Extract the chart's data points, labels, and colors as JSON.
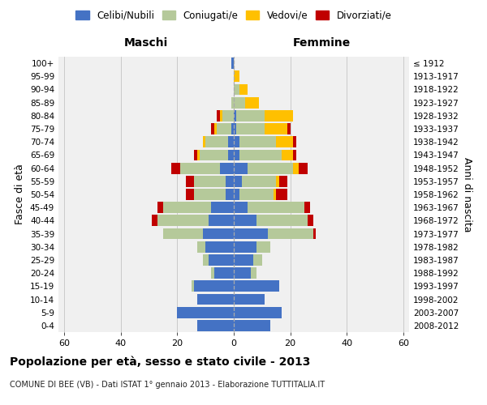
{
  "age_groups": [
    "0-4",
    "5-9",
    "10-14",
    "15-19",
    "20-24",
    "25-29",
    "30-34",
    "35-39",
    "40-44",
    "45-49",
    "50-54",
    "55-59",
    "60-64",
    "65-69",
    "70-74",
    "75-79",
    "80-84",
    "85-89",
    "90-94",
    "95-99",
    "100+"
  ],
  "birth_years": [
    "2008-2012",
    "2003-2007",
    "1998-2002",
    "1993-1997",
    "1988-1992",
    "1983-1987",
    "1978-1982",
    "1973-1977",
    "1968-1972",
    "1963-1967",
    "1958-1962",
    "1953-1957",
    "1948-1952",
    "1943-1947",
    "1938-1942",
    "1933-1937",
    "1928-1932",
    "1923-1927",
    "1918-1922",
    "1913-1917",
    "≤ 1912"
  ],
  "colors": {
    "celibi": "#4472c4",
    "coniugati": "#b5c99a",
    "vedovi": "#ffc000",
    "divorziati": "#c00000",
    "background": "#f0f0f0",
    "grid": "#cccccc",
    "dashed": "#aaaaaa"
  },
  "maschi": {
    "celibi": [
      13,
      20,
      13,
      14,
      7,
      9,
      10,
      11,
      9,
      8,
      3,
      3,
      5,
      2,
      2,
      1,
      0,
      0,
      0,
      0,
      1
    ],
    "coniugati": [
      0,
      0,
      0,
      1,
      1,
      2,
      3,
      14,
      18,
      17,
      11,
      11,
      14,
      10,
      8,
      5,
      4,
      1,
      0,
      0,
      0
    ],
    "vedovi": [
      0,
      0,
      0,
      0,
      0,
      0,
      0,
      0,
      0,
      0,
      0,
      0,
      0,
      1,
      1,
      1,
      1,
      0,
      0,
      0,
      0
    ],
    "divorziati": [
      0,
      0,
      0,
      0,
      0,
      0,
      0,
      0,
      2,
      2,
      3,
      3,
      3,
      1,
      0,
      1,
      1,
      0,
      0,
      0,
      0
    ]
  },
  "femmine": {
    "celibi": [
      13,
      17,
      11,
      16,
      6,
      7,
      8,
      12,
      8,
      5,
      2,
      3,
      5,
      2,
      2,
      1,
      1,
      0,
      0,
      0,
      0
    ],
    "coniugati": [
      0,
      0,
      0,
      0,
      2,
      3,
      5,
      16,
      18,
      20,
      12,
      12,
      16,
      15,
      13,
      10,
      10,
      4,
      2,
      0,
      0
    ],
    "vedovi": [
      0,
      0,
      0,
      0,
      0,
      0,
      0,
      0,
      0,
      0,
      1,
      1,
      2,
      4,
      6,
      8,
      10,
      5,
      3,
      2,
      0
    ],
    "divorziati": [
      0,
      0,
      0,
      0,
      0,
      0,
      0,
      1,
      2,
      2,
      4,
      3,
      3,
      1,
      1,
      1,
      0,
      0,
      0,
      0,
      0
    ]
  },
  "xlim": 62,
  "title": "Popolazione per età, sesso e stato civile - 2013",
  "subtitle": "COMUNE DI BEE (VB) - Dati ISTAT 1° gennaio 2013 - Elaborazione TUTTITALIA.IT",
  "xlabel_left": "Maschi",
  "xlabel_right": "Femmine",
  "ylabel_left": "Fasce di età",
  "ylabel_right": "Anni di nascita",
  "legend_labels": [
    "Celibi/Nubili",
    "Coniugati/e",
    "Vedovi/e",
    "Divorziati/e"
  ],
  "xtick_vals": [
    -60,
    -40,
    -20,
    0,
    20,
    40,
    60
  ]
}
